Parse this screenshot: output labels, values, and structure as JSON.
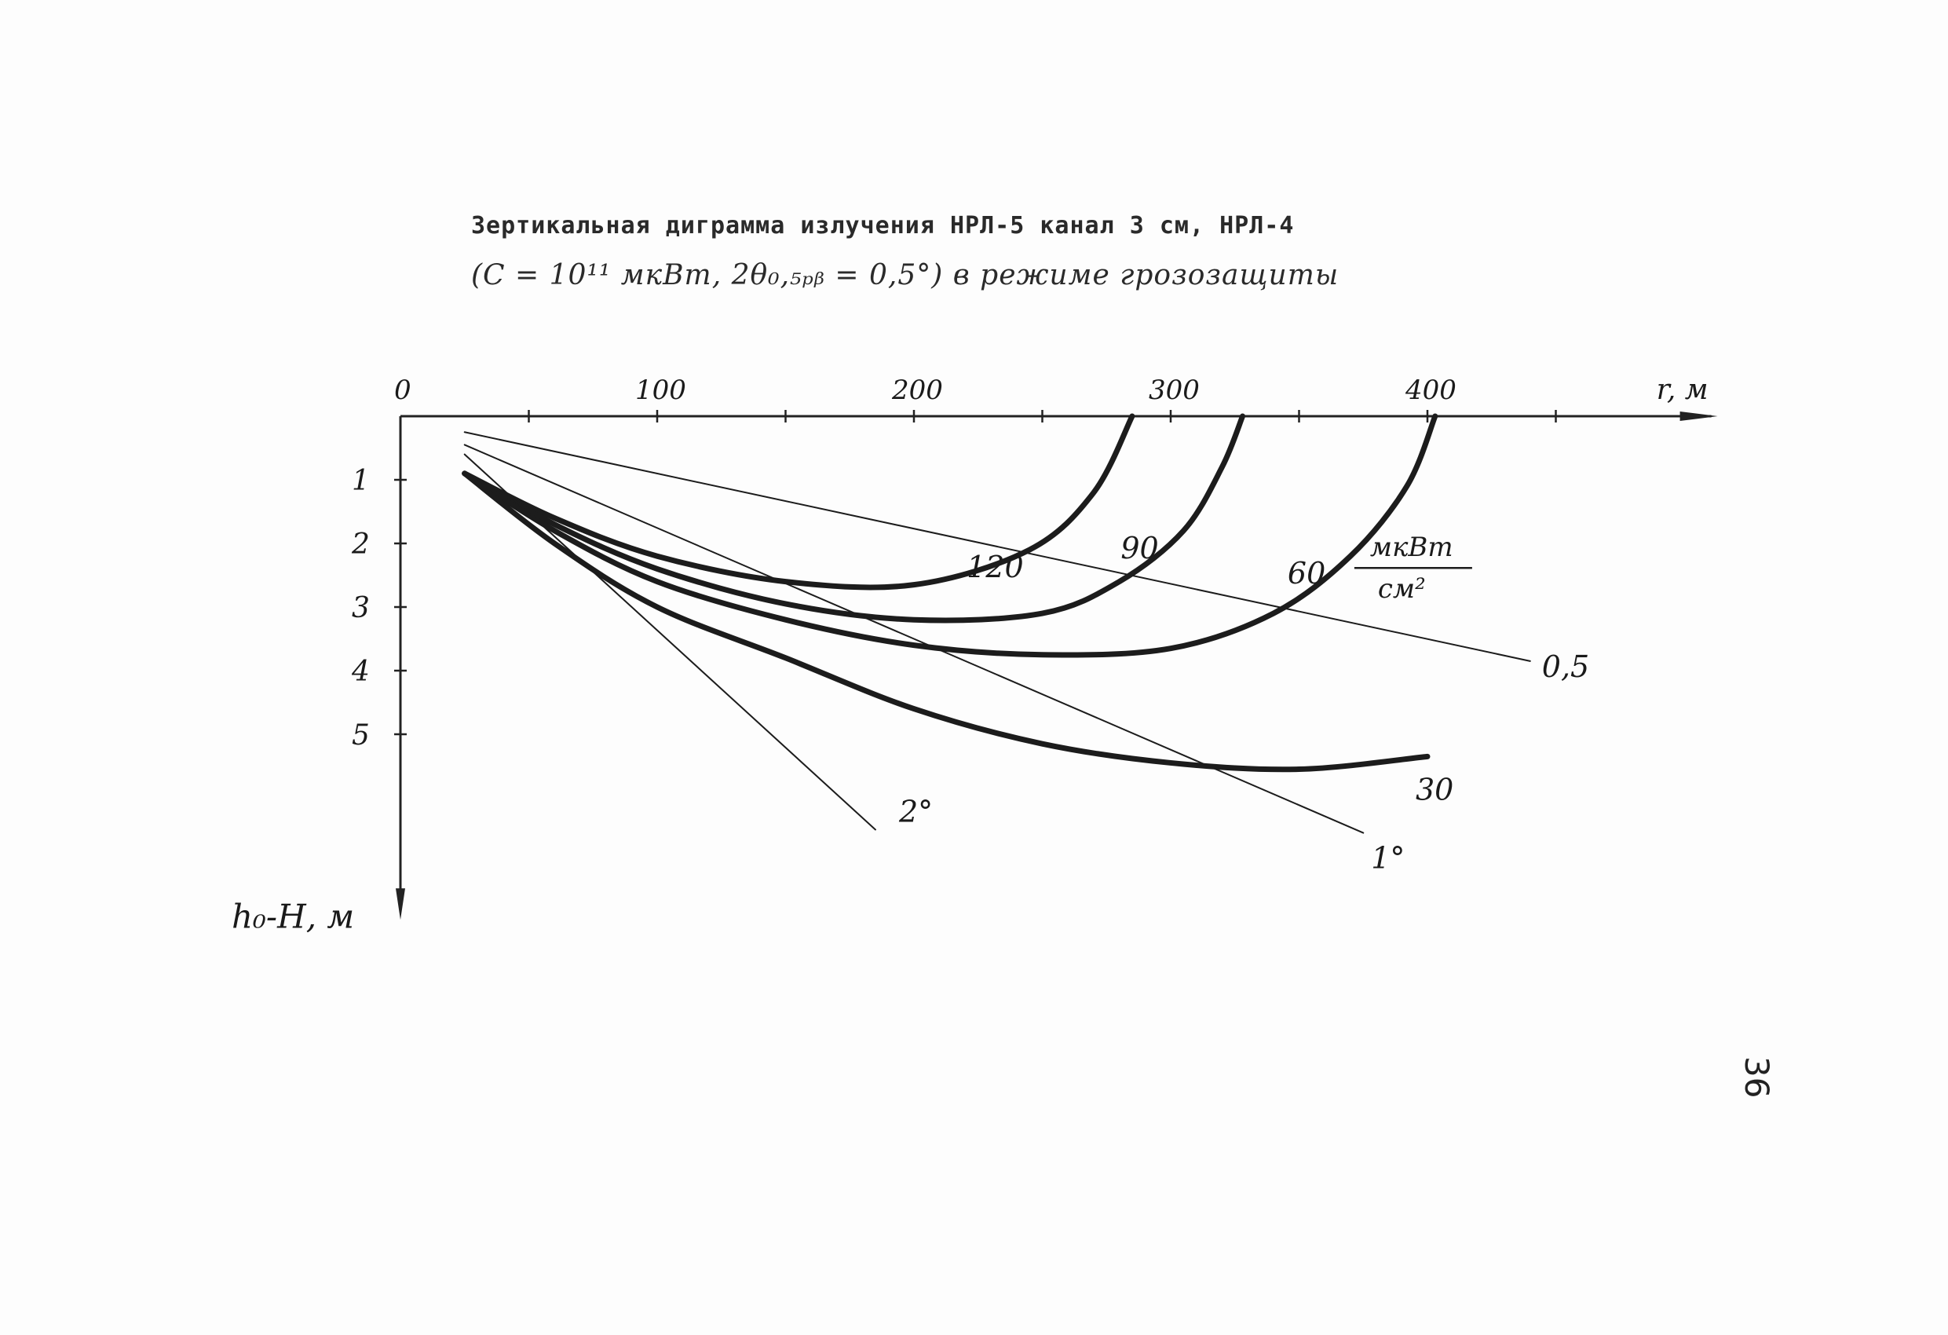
{
  "header": {
    "title_line1": "Зертикальная диграмма излучения НРЛ-5 канал 3 см, НРЛ-4",
    "title_line2": "(С = 10¹¹ мкВт, 2θ₀,₅ₚᵦ = 0,5°) в режиме грозозащиты"
  },
  "page_number": "36",
  "chart_data": {
    "type": "line",
    "xlabel": "r, м",
    "ylabel": "h₀-H, м",
    "x_ticks": [
      "0",
      "100",
      "200",
      "300",
      "400"
    ],
    "y_ticks": [
      "1",
      "2",
      "3",
      "4",
      "5"
    ],
    "xlim": [
      0,
      480
    ],
    "ylim": [
      0,
      7.3
    ],
    "y_inverted": true,
    "unit_label": {
      "numerator": "мкВт",
      "denominator": "см²"
    },
    "series": [
      {
        "name": "120",
        "style": "thick",
        "x": [
          25,
          60,
          100,
          150,
          200,
          245,
          270,
          285
        ],
        "y": [
          0.9,
          1.6,
          2.2,
          2.6,
          2.65,
          2.1,
          1.2,
          0.0
        ]
      },
      {
        "name": "90",
        "style": "thick",
        "x": [
          25,
          60,
          100,
          150,
          200,
          250,
          280,
          305,
          320,
          328
        ],
        "y": [
          0.9,
          1.7,
          2.4,
          2.95,
          3.2,
          3.1,
          2.6,
          1.8,
          0.8,
          0.0
        ]
      },
      {
        "name": "60",
        "style": "thick",
        "x": [
          25,
          60,
          100,
          150,
          200,
          250,
          300,
          340,
          370,
          392,
          403
        ],
        "y": [
          0.9,
          1.8,
          2.6,
          3.2,
          3.6,
          3.75,
          3.65,
          3.1,
          2.2,
          1.1,
          0.0
        ]
      },
      {
        "name": "30",
        "style": "thick",
        "x": [
          25,
          60,
          100,
          150,
          200,
          250,
          300,
          350,
          400
        ],
        "y": [
          0.9,
          2.0,
          3.0,
          3.8,
          4.6,
          5.15,
          5.45,
          5.55,
          5.35
        ]
      },
      {
        "name": "0,5",
        "style": "thin",
        "x": [
          25,
          440
        ],
        "y": [
          0.25,
          3.85
        ]
      },
      {
        "name": "1°",
        "style": "thin",
        "x": [
          25,
          375
        ],
        "y": [
          0.45,
          6.55
        ]
      },
      {
        "name": "2°",
        "style": "thin",
        "x": [
          25,
          185
        ],
        "y": [
          0.6,
          6.5
        ]
      }
    ]
  }
}
